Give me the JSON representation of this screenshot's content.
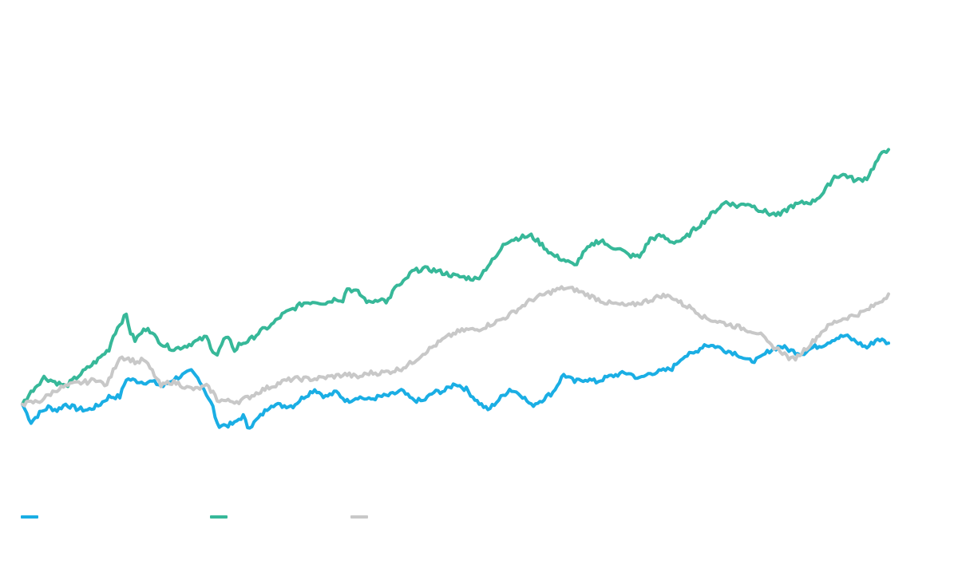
{
  "chart_data": {
    "type": "line",
    "title": "",
    "xlabel": "",
    "ylabel": "",
    "grid": false,
    "legend_position": "bottom-left",
    "ylim": [
      -50,
      250
    ],
    "x_count": 400,
    "series": [
      {
        "key": "blue",
        "name": "",
        "color": "#1aaee4",
        "anchors": [
          [
            0,
            0
          ],
          [
            4,
            -12
          ],
          [
            8,
            -6
          ],
          [
            12,
            -2
          ],
          [
            16,
            -4
          ],
          [
            20,
            0
          ],
          [
            25,
            -3
          ],
          [
            30,
            -4
          ],
          [
            35,
            -1
          ],
          [
            40,
            5
          ],
          [
            45,
            5
          ],
          [
            48,
            17
          ],
          [
            55,
            15
          ],
          [
            60,
            15
          ],
          [
            65,
            12
          ],
          [
            70,
            17
          ],
          [
            75,
            20
          ],
          [
            78,
            22
          ],
          [
            82,
            16
          ],
          [
            85,
            7
          ],
          [
            88,
            -2
          ],
          [
            90,
            -14
          ],
          [
            95,
            -14
          ],
          [
            98,
            -13
          ],
          [
            100,
            -10
          ],
          [
            102,
            -8
          ],
          [
            104,
            -15
          ],
          [
            106,
            -14
          ],
          [
            110,
            -8
          ],
          [
            115,
            0
          ],
          [
            120,
            -1
          ],
          [
            125,
            -1
          ],
          [
            130,
            5
          ],
          [
            135,
            10
          ],
          [
            140,
            5
          ],
          [
            145,
            8
          ],
          [
            150,
            2
          ],
          [
            155,
            5
          ],
          [
            160,
            3
          ],
          [
            165,
            5
          ],
          [
            170,
            6
          ],
          [
            175,
            9
          ],
          [
            180,
            3
          ],
          [
            185,
            2
          ],
          [
            190,
            8
          ],
          [
            195,
            9
          ],
          [
            200,
            14
          ],
          [
            205,
            10
          ],
          [
            210,
            2
          ],
          [
            215,
            -4
          ],
          [
            220,
            3
          ],
          [
            225,
            10
          ],
          [
            230,
            7
          ],
          [
            235,
            -1
          ],
          [
            240,
            3
          ],
          [
            245,
            8
          ],
          [
            250,
            20
          ],
          [
            255,
            15
          ],
          [
            260,
            17
          ],
          [
            265,
            15
          ],
          [
            270,
            18
          ],
          [
            275,
            20
          ],
          [
            280,
            21
          ],
          [
            285,
            17
          ],
          [
            290,
            21
          ],
          [
            295,
            22
          ],
          [
            300,
            24
          ],
          [
            305,
            32
          ],
          [
            310,
            34
          ],
          [
            315,
            40
          ],
          [
            320,
            39
          ],
          [
            325,
            36
          ],
          [
            330,
            34
          ],
          [
            335,
            29
          ],
          [
            340,
            30
          ],
          [
            345,
            36
          ],
          [
            350,
            39
          ],
          [
            355,
            36
          ],
          [
            360,
            34
          ],
          [
            365,
            38
          ],
          [
            370,
            40
          ],
          [
            375,
            44
          ],
          [
            380,
            46
          ],
          [
            385,
            42
          ],
          [
            390,
            38
          ],
          [
            395,
            44
          ],
          [
            400,
            41
          ]
        ]
      },
      {
        "key": "green",
        "name": "",
        "color": "#37b899",
        "anchors": [
          [
            0,
            0
          ],
          [
            5,
            10
          ],
          [
            10,
            18
          ],
          [
            15,
            15
          ],
          [
            20,
            12
          ],
          [
            25,
            18
          ],
          [
            30,
            24
          ],
          [
            35,
            30
          ],
          [
            40,
            37
          ],
          [
            42,
            46
          ],
          [
            45,
            54
          ],
          [
            48,
            60
          ],
          [
            50,
            48
          ],
          [
            52,
            43
          ],
          [
            55,
            48
          ],
          [
            58,
            52
          ],
          [
            60,
            47
          ],
          [
            65,
            40
          ],
          [
            70,
            37
          ],
          [
            75,
            39
          ],
          [
            80,
            42
          ],
          [
            85,
            45
          ],
          [
            88,
            36
          ],
          [
            90,
            33
          ],
          [
            93,
            43
          ],
          [
            96,
            44
          ],
          [
            98,
            35
          ],
          [
            100,
            40
          ],
          [
            105,
            43
          ],
          [
            110,
            49
          ],
          [
            115,
            53
          ],
          [
            120,
            60
          ],
          [
            125,
            64
          ],
          [
            130,
            68
          ],
          [
            135,
            69
          ],
          [
            140,
            68
          ],
          [
            145,
            71
          ],
          [
            148,
            70
          ],
          [
            150,
            78
          ],
          [
            155,
            75
          ],
          [
            160,
            68
          ],
          [
            165,
            71
          ],
          [
            168,
            69
          ],
          [
            170,
            71
          ],
          [
            172,
            79
          ],
          [
            175,
            80
          ],
          [
            180,
            89
          ],
          [
            185,
            91
          ],
          [
            190,
            90
          ],
          [
            195,
            88
          ],
          [
            200,
            86
          ],
          [
            205,
            85
          ],
          [
            210,
            84
          ],
          [
            215,
            93
          ],
          [
            220,
            101
          ],
          [
            222,
            108
          ],
          [
            225,
            110
          ],
          [
            230,
            112
          ],
          [
            235,
            113
          ],
          [
            240,
            107
          ],
          [
            245,
            100
          ],
          [
            250,
            97
          ],
          [
            255,
            93
          ],
          [
            260,
            103
          ],
          [
            265,
            109
          ],
          [
            268,
            110
          ],
          [
            270,
            106
          ],
          [
            275,
            105
          ],
          [
            280,
            100
          ],
          [
            285,
            99
          ],
          [
            290,
            111
          ],
          [
            295,
            113
          ],
          [
            300,
            109
          ],
          [
            305,
            110
          ],
          [
            310,
            117
          ],
          [
            315,
            123
          ],
          [
            320,
            130
          ],
          [
            325,
            136
          ],
          [
            330,
            133
          ],
          [
            335,
            135
          ],
          [
            340,
            131
          ],
          [
            345,
            128
          ],
          [
            350,
            127
          ],
          [
            355,
            133
          ],
          [
            360,
            135
          ],
          [
            365,
            136
          ],
          [
            370,
            142
          ],
          [
            375,
            153
          ],
          [
            380,
            154
          ],
          [
            385,
            150
          ],
          [
            390,
            152
          ],
          [
            395,
            164
          ],
          [
            398,
            170
          ],
          [
            400,
            171
          ]
        ]
      },
      {
        "key": "gray",
        "name": "",
        "color": "#c8c8c8",
        "anchors": [
          [
            0,
            0
          ],
          [
            4,
            1
          ],
          [
            8,
            2
          ],
          [
            12,
            6
          ],
          [
            16,
            10
          ],
          [
            20,
            12
          ],
          [
            25,
            14
          ],
          [
            30,
            15
          ],
          [
            35,
            17
          ],
          [
            38,
            12
          ],
          [
            40,
            16
          ],
          [
            45,
            32
          ],
          [
            50,
            30
          ],
          [
            53,
            28
          ],
          [
            56,
            30
          ],
          [
            60,
            22
          ],
          [
            64,
            12
          ],
          [
            68,
            15
          ],
          [
            72,
            14
          ],
          [
            76,
            11
          ],
          [
            80,
            10
          ],
          [
            85,
            12
          ],
          [
            88,
            8
          ],
          [
            90,
            3
          ],
          [
            95,
            2
          ],
          [
            100,
            2
          ],
          [
            105,
            5
          ],
          [
            110,
            9
          ],
          [
            115,
            12
          ],
          [
            120,
            15
          ],
          [
            125,
            17
          ],
          [
            130,
            17
          ],
          [
            135,
            17
          ],
          [
            140,
            18
          ],
          [
            145,
            19
          ],
          [
            150,
            20
          ],
          [
            155,
            18
          ],
          [
            160,
            21
          ],
          [
            165,
            21
          ],
          [
            170,
            22
          ],
          [
            175,
            24
          ],
          [
            180,
            28
          ],
          [
            185,
            34
          ],
          [
            190,
            39
          ],
          [
            195,
            44
          ],
          [
            200,
            48
          ],
          [
            205,
            50
          ],
          [
            210,
            50
          ],
          [
            215,
            53
          ],
          [
            220,
            56
          ],
          [
            225,
            60
          ],
          [
            230,
            65
          ],
          [
            235,
            70
          ],
          [
            240,
            73
          ],
          [
            245,
            76
          ],
          [
            250,
            78
          ],
          [
            255,
            77
          ],
          [
            260,
            74
          ],
          [
            265,
            71
          ],
          [
            270,
            68
          ],
          [
            275,
            67
          ],
          [
            280,
            66
          ],
          [
            285,
            68
          ],
          [
            290,
            70
          ],
          [
            295,
            73
          ],
          [
            300,
            72
          ],
          [
            305,
            67
          ],
          [
            310,
            64
          ],
          [
            315,
            58
          ],
          [
            320,
            56
          ],
          [
            325,
            54
          ],
          [
            330,
            52
          ],
          [
            335,
            50
          ],
          [
            340,
            48
          ],
          [
            345,
            40
          ],
          [
            350,
            36
          ],
          [
            355,
            30
          ],
          [
            358,
            32
          ],
          [
            360,
            35
          ],
          [
            365,
            42
          ],
          [
            370,
            50
          ],
          [
            375,
            55
          ],
          [
            380,
            58
          ],
          [
            385,
            60
          ],
          [
            390,
            63
          ],
          [
            395,
            68
          ],
          [
            398,
            71
          ],
          [
            400,
            74
          ]
        ]
      }
    ],
    "noise_seed": 7
  }
}
